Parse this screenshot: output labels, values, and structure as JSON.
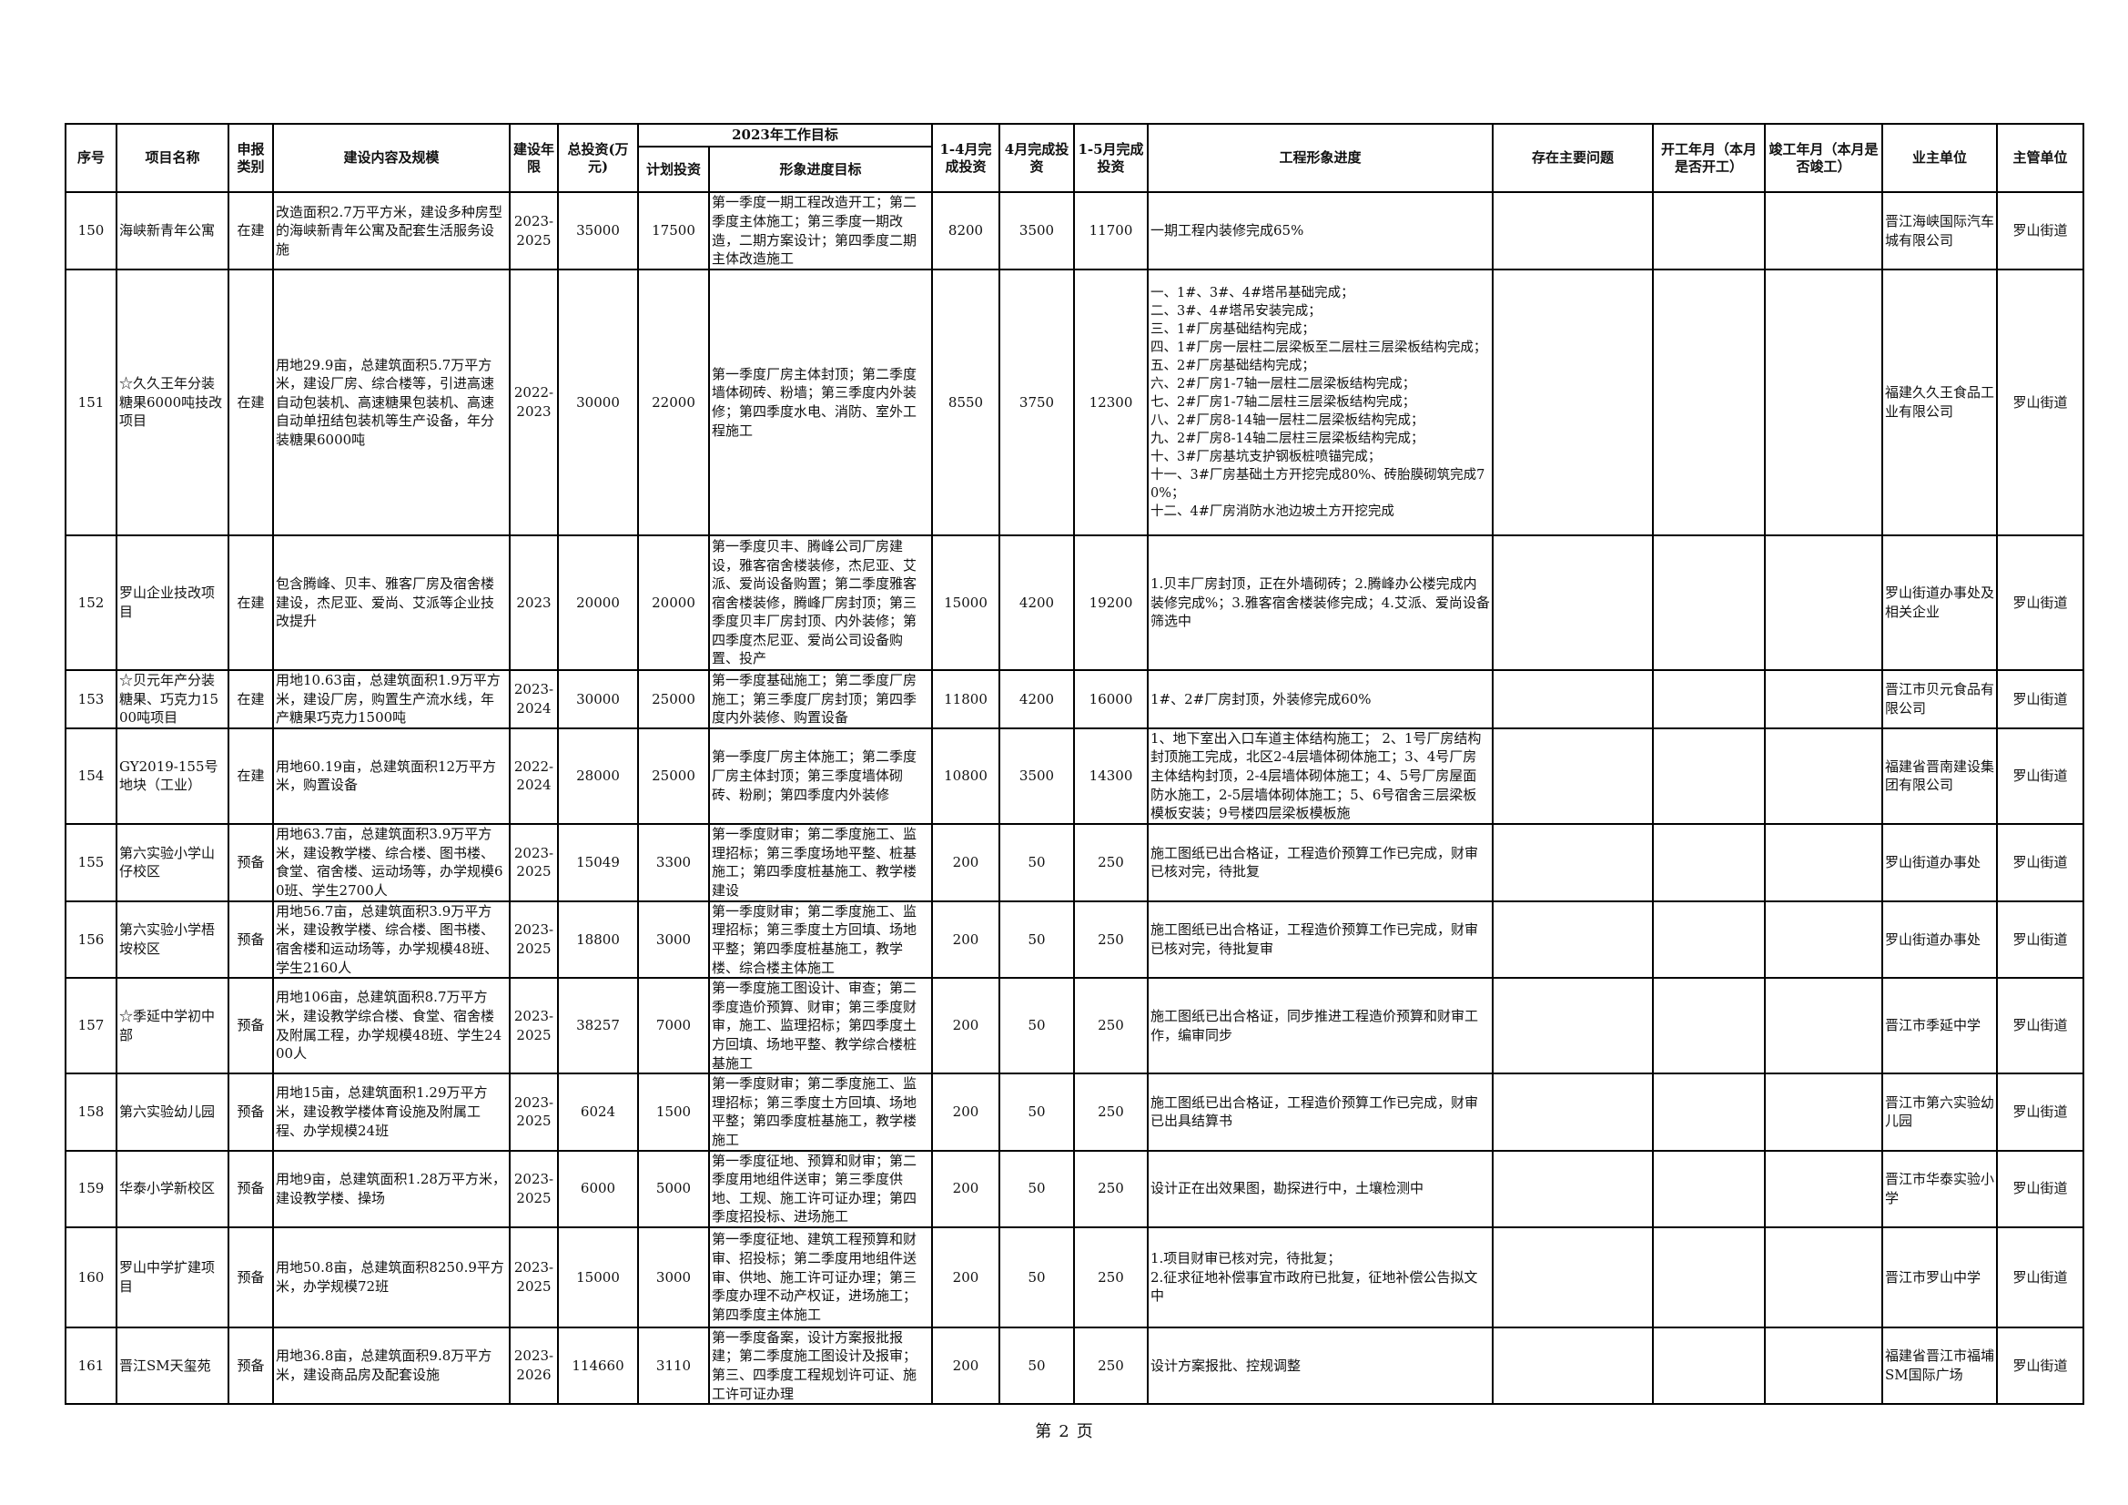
{
  "header": {
    "seq": "序号",
    "name": "项目名称",
    "type": "申报类别",
    "content": "建设内容及规模",
    "period": "建设年限",
    "total": "总投资(万元)",
    "goal_group": "2023年工作目标",
    "plan": "计划投资",
    "goal": "形象进度目标",
    "jan_apr": "1-4月完成投资",
    "apr": "4月完成投资",
    "jan_may": "1-5月完成投资",
    "progress": "工程形象进度",
    "issues": "存在主要问题",
    "start": "开工年月（本月是否开工）",
    "finish": "竣工年月（本月是否竣工）",
    "owner": "业主单位",
    "supervisor": "主管单位"
  },
  "rows": [
    {
      "seq": "150",
      "name": "海峡新青年公寓",
      "type": "在建",
      "content": "改造面积2.7万平方米，建设多种房型的海峡新青年公寓及配套生活服务设施",
      "period": "2023-2025",
      "total": "35000",
      "plan": "17500",
      "goal": "第一季度一期工程改造开工；第二季度主体施工；第三季度一期改造，二期方案设计；第四季度二期主体改造施工",
      "jan_apr": "8200",
      "apr": "3500",
      "jan_may": "11700",
      "progress": "一期工程内装修完成65%",
      "issues": "",
      "start": "",
      "finish": "",
      "owner": "晋江海峡国际汽车城有限公司",
      "supervisor": "罗山街道"
    },
    {
      "seq": "151",
      "name": "☆久久王年分装糖果6000吨技改项目",
      "type": "在建",
      "content": "用地29.9亩，总建筑面积5.7万平方米，建设厂房、综合楼等，引进高速自动包装机、高速糖果包装机、高速自动单扭结包装机等生产设备，年分装糖果6000吨",
      "period": "2022-2023",
      "total": "30000",
      "plan": "22000",
      "goal": "第一季度厂房主体封顶；第二季度墙体砌砖、粉墙；第三季度内外装修；第四季度水电、消防、室外工程施工",
      "jan_apr": "8550",
      "apr": "3750",
      "jan_may": "12300",
      "progress": "一、1#、3#、4#塔吊基础完成；\n二、3#、4#塔吊安装完成；\n三、1#厂房基础结构完成；\n四、1#厂房一层柱二层梁板至二层柱三层梁板结构完成；\n五、2#厂房基础结构完成；\n六、2#厂房1-7轴一层柱二层梁板结构完成；\n七、2#厂房1-7轴二层柱三层梁板结构完成；\n八、2#厂房8-14轴一层柱二层梁板结构完成；\n九、2#厂房8-14轴二层柱三层梁板结构完成；\n十、3#厂房基坑支护钢板桩喷锚完成；\n十一、3#厂房基础土方开挖完成80%、砖胎膜砌筑完成70%；\n十二、4#厂房消防水池边坡土方开挖完成",
      "issues": "",
      "start": "",
      "finish": "",
      "owner": "福建久久王食品工业有限公司",
      "supervisor": "罗山街道"
    },
    {
      "seq": "152",
      "name": "罗山企业技改项目",
      "type": "在建",
      "content": "包含腾峰、贝丰、雅客厂房及宿舍楼建设，杰尼亚、爱尚、艾派等企业技改提升",
      "period": "2023",
      "total": "20000",
      "plan": "20000",
      "goal": "第一季度贝丰、腾峰公司厂房建设，雅客宿舍楼装修，杰尼亚、艾派、爱尚设备购置；第二季度雅客宿舍楼装修，腾峰厂房封顶；第三季度贝丰厂房封顶、内外装修；第四季度杰尼亚、爱尚公司设备购置、投产",
      "jan_apr": "15000",
      "apr": "4200",
      "jan_may": "19200",
      "progress": "1.贝丰厂房封顶，正在外墙砌砖；2.腾峰办公楼完成内装修完成%；3.雅客宿舍楼装修完成；4.艾派、爱尚设备筛选中",
      "issues": "",
      "start": "",
      "finish": "",
      "owner": "罗山街道办事处及相关企业",
      "supervisor": "罗山街道"
    },
    {
      "seq": "153",
      "name": "☆贝元年产分装糖果、巧克力1500吨项目",
      "type": "在建",
      "content": "用地10.63亩，总建筑面积1.9万平方米，建设厂房，购置生产流水线，年产糖果巧克力1500吨",
      "period": "2023-2024",
      "total": "30000",
      "plan": "25000",
      "goal": "第一季度基础施工；第二季度厂房施工；第三季度厂房封顶；第四季度内外装修、购置设备",
      "jan_apr": "11800",
      "apr": "4200",
      "jan_may": "16000",
      "progress": "1#、2#厂房封顶，外装修完成60%",
      "issues": "",
      "start": "",
      "finish": "",
      "owner": "晋江市贝元食品有限公司",
      "supervisor": "罗山街道"
    },
    {
      "seq": "154",
      "name": "GY2019-155号地块（工业）",
      "type": "在建",
      "content": "用地60.19亩，总建筑面积12万平方米，购置设备",
      "period": "2022-2024",
      "total": "28000",
      "plan": "25000",
      "goal": "第一季度厂房主体施工；第二季度厂房主体封顶；第三季度墙体砌砖、粉刷；第四季度内外装修",
      "jan_apr": "10800",
      "apr": "3500",
      "jan_may": "14300",
      "progress": "1、地下室出入口车道主体结构施工； 2、1号厂房结构封顶施工完成，北区2-4层墙体砌体施工；3、4号厂房主体结构封顶，2-4层墙体砌体施工；4、5号厂房屋面防水施工，2-5层墙体砌体施工；5、6号宿舍三层梁板模板安装；9号楼四层梁板模板施",
      "issues": "",
      "start": "",
      "finish": "",
      "owner": "福建省晋南建设集团有限公司",
      "supervisor": "罗山街道"
    },
    {
      "seq": "155",
      "name": "第六实验小学山仔校区",
      "type": "预备",
      "content": "用地63.7亩，总建筑面积3.9万平方米，建设教学楼、综合楼、图书楼、食堂、宿舍楼、运动场等，办学规模60班、学生2700人",
      "period": "2023-2025",
      "total": "15049",
      "plan": "3300",
      "goal": "第一季度财审；第二季度施工、监理招标；第三季度场地平整、桩基施工；第四季度桩基施工、教学楼建设",
      "jan_apr": "200",
      "apr": "50",
      "jan_may": "250",
      "progress": "施工图纸已出合格证，工程造价预算工作已完成，财审已核对完，待批复",
      "issues": "",
      "start": "",
      "finish": "",
      "owner": "罗山街道办事处",
      "supervisor": "罗山街道"
    },
    {
      "seq": "156",
      "name": "第六实验小学梧垵校区",
      "type": "预备",
      "content": "用地56.7亩，总建筑面积3.9万平方米，建设教学楼、综合楼、图书楼、宿舍楼和运动场等，办学规模48班、学生2160人",
      "period": "2023-2025",
      "total": "18800",
      "plan": "3000",
      "goal": "第一季度财审；第二季度施工、监理招标；第三季度土方回填、场地平整；第四季度桩基施工，教学楼、综合楼主体施工",
      "jan_apr": "200",
      "apr": "50",
      "jan_may": "250",
      "progress": "施工图纸已出合格证，工程造价预算工作已完成，财审已核对完，待批复审",
      "issues": "",
      "start": "",
      "finish": "",
      "owner": "罗山街道办事处",
      "supervisor": "罗山街道"
    },
    {
      "seq": "157",
      "name": "☆季延中学初中部",
      "type": "预备",
      "content": "用地106亩，总建筑面积8.7万平方米，建设教学综合楼、食堂、宿舍楼及附属工程，办学规模48班、学生2400人",
      "period": "2023-2025",
      "total": "38257",
      "plan": "7000",
      "goal": "第一季度施工图设计、审查；第二季度造价预算、财审；第三季度财审，施工、监理招标；第四季度土方回填、场地平整、教学综合楼桩基施工",
      "jan_apr": "200",
      "apr": "50",
      "jan_may": "250",
      "progress": "施工图纸已出合格证，同步推进工程造价预算和财审工作，编审同步",
      "issues": "",
      "start": "",
      "finish": "",
      "owner": "晋江市季延中学",
      "supervisor": "罗山街道"
    },
    {
      "seq": "158",
      "name": "第六实验幼儿园",
      "type": "预备",
      "content": "用地15亩，总建筑面积1.29万平方米，建设教学楼体育设施及附属工程、办学规模24班",
      "period": "2023-2025",
      "total": "6024",
      "plan": "1500",
      "goal": "第一季度财审；第二季度施工、监理招标；第三季度土方回填、场地平整；第四季度桩基施工，教学楼施工",
      "jan_apr": "200",
      "apr": "50",
      "jan_may": "250",
      "progress": "施工图纸已出合格证，工程造价预算工作已完成，财审已出具结算书",
      "issues": "",
      "start": "",
      "finish": "",
      "owner": "晋江市第六实验幼儿园",
      "supervisor": "罗山街道"
    },
    {
      "seq": "159",
      "name": "华泰小学新校区",
      "type": "预备",
      "content": "用地9亩，总建筑面积1.28万平方米，建设教学楼、操场",
      "period": "2023-2025",
      "total": "6000",
      "plan": "5000",
      "goal": "第一季度征地、预算和财审；第二季度用地组件送审；第三季度供地、工规、施工许可证办理；第四季度招投标、进场施工",
      "jan_apr": "200",
      "apr": "50",
      "jan_may": "250",
      "progress": "设计正在出效果图，勘探进行中，土壤检测中",
      "issues": "",
      "start": "",
      "finish": "",
      "owner": "晋江市华泰实验小学",
      "supervisor": "罗山街道"
    },
    {
      "seq": "160",
      "name": "罗山中学扩建项目",
      "type": "预备",
      "content": "用地50.8亩，总建筑面积8250.9平方米，办学规模72班",
      "period": "2023-2025",
      "total": "15000",
      "plan": "3000",
      "goal": "第一季度征地、建筑工程预算和财审、招投标；第二季度用地组件送审、供地、施工许可证办理；第三季度办理不动产权证，进场施工；第四季度主体施工",
      "jan_apr": "200",
      "apr": "50",
      "jan_may": "250",
      "progress": "1.项目财审已核对完，待批复；\n2.征求征地补偿事宜市政府已批复，征地补偿公告拟文中",
      "issues": "",
      "start": "",
      "finish": "",
      "owner": "晋江市罗山中学",
      "supervisor": "罗山街道"
    },
    {
      "seq": "161",
      "name": "晋江SM天玺苑",
      "type": "预备",
      "content": "用地36.8亩，总建筑面积9.8万平方米，建设商品房及配套设施",
      "period": "2023-2026",
      "total": "114660",
      "plan": "3110",
      "goal": "第一季度备案，设计方案报批报建；第二季度施工图设计及报审；第三、四季度工程规划许可证、施工许可证办理",
      "jan_apr": "200",
      "apr": "50",
      "jan_may": "250",
      "progress": "设计方案报批、控规调整",
      "issues": "",
      "start": "",
      "finish": "",
      "owner": "福建省晋江市福埔SM国际广场",
      "supervisor": "罗山街道"
    }
  ],
  "footer": {
    "prefix": "第",
    "page": "2",
    "suffix": "页"
  }
}
